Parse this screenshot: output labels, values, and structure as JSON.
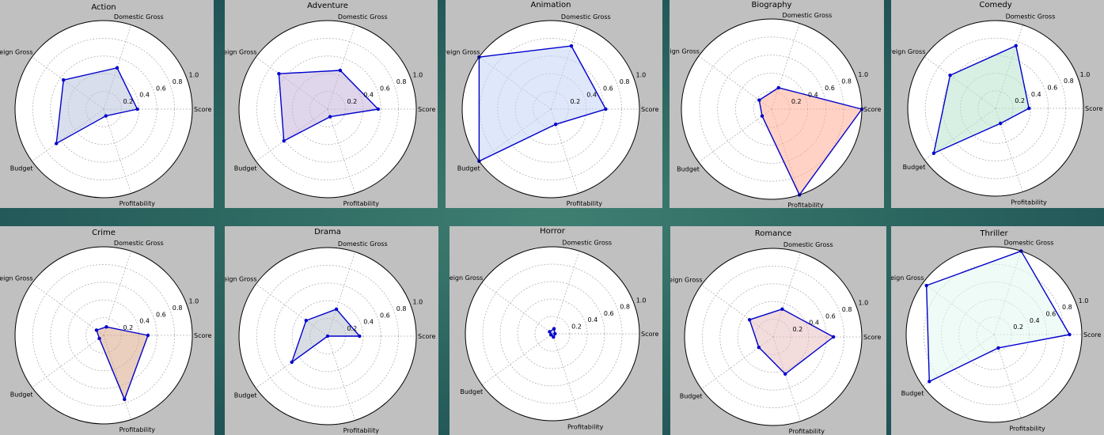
{
  "colors": {
    "line": "#0000cc",
    "panel_bg": "#c0c0c0",
    "plot_bg": "#ffffff",
    "grid": "#b0b0b0"
  },
  "chart_data": {
    "type": "radar",
    "axes": [
      "Score",
      "Domestic Gross",
      "Foreign Gross",
      "Budget",
      "Profitability"
    ],
    "radial_ticks": [
      "0.2",
      "0.4",
      "0.6",
      "0.8",
      "1.0"
    ],
    "rlim": [
      0,
      1
    ],
    "grid": true,
    "charts": [
      {
        "title": "Action",
        "values": [
          0.38,
          0.49,
          0.56,
          0.66,
          0.08
        ],
        "fill": "#b8c2dc"
      },
      {
        "title": "Adventure",
        "values": [
          0.57,
          0.46,
          0.68,
          0.61,
          0.09
        ],
        "fill": "#c6b4dc"
      },
      {
        "title": "Animation",
        "values": [
          0.62,
          0.75,
          1.0,
          1.0,
          0.18
        ],
        "fill": "#c4d4f8"
      },
      {
        "title": "Biography",
        "values": [
          1.0,
          0.25,
          0.17,
          0.13,
          1.0
        ],
        "fill": "#ffad96"
      },
      {
        "title": "Comedy",
        "values": [
          0.38,
          0.75,
          0.64,
          0.87,
          0.18
        ],
        "fill": "#b6e4cc"
      },
      {
        "title": "Crime",
        "values": [
          0.5,
          0.1,
          0.1,
          0.06,
          0.76
        ],
        "fill": "#d8a888"
      },
      {
        "title": "Drama",
        "values": [
          0.36,
          0.32,
          0.3,
          0.5,
          0.0
        ],
        "fill": "#b8c0cc"
      },
      {
        "title": "Horror",
        "values": [
          0.03,
          0.06,
          0.04,
          0.02,
          0.04
        ],
        "fill": "#a8b8d4"
      },
      {
        "title": "Romance",
        "values": [
          0.68,
          0.33,
          0.33,
          0.2,
          0.44
        ],
        "fill": "#e8c0c0"
      },
      {
        "title": "Thriller",
        "values": [
          0.86,
          1.0,
          0.95,
          0.91,
          0.16
        ],
        "fill": "#e2f8f0"
      }
    ]
  }
}
